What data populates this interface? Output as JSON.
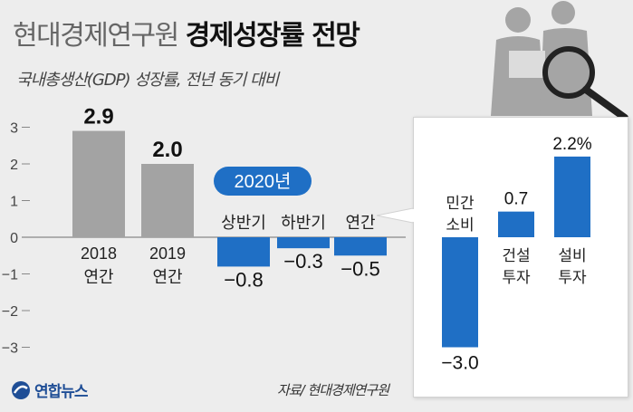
{
  "header": {
    "title_light": "현대경제연구원",
    "title_bold": "경제성장률 전망",
    "subtitle": "국내총생산(GDP) 성장률, 전년 동기 대비"
  },
  "badge": {
    "label": "2020년"
  },
  "source": "자료/ 현대경제연구원",
  "logo": {
    "text": "연합뉴스"
  },
  "colors": {
    "gray_bar": "#a3a3a3",
    "blue_bar": "#1f6fc5",
    "background": "#ededed"
  },
  "chart_data": [
    {
      "type": "bar",
      "title": "",
      "ylim": [
        -3,
        3
      ],
      "y_ticks": [
        "3",
        "2",
        "1",
        "0",
        "−1",
        "−2",
        "−3"
      ],
      "bars": [
        {
          "label_lines": [
            "2018",
            "연간"
          ],
          "value": 2.9,
          "value_label": "2.9"
        },
        {
          "label_lines": [
            "2019",
            "연간"
          ],
          "value": 2.0,
          "value_label": "2.0"
        },
        {
          "label_lines": [
            "상반기"
          ],
          "value": -0.8,
          "value_label": "−0.8"
        },
        {
          "label_lines": [
            "하반기"
          ],
          "value": -0.3,
          "value_label": "−0.3"
        },
        {
          "label_lines": [
            "연간"
          ],
          "value": -0.5,
          "value_label": "−0.5"
        }
      ]
    },
    {
      "type": "bar",
      "title": "",
      "ylim": [
        -3,
        3
      ],
      "bars": [
        {
          "label_lines": [
            "민간",
            "소비"
          ],
          "value": -3.0,
          "value_label": "−3.0"
        },
        {
          "label_lines": [
            "건설",
            "투자"
          ],
          "value": 0.7,
          "value_label": "0.7"
        },
        {
          "label_lines": [
            "설비",
            "투자"
          ],
          "value": 2.2,
          "value_label": "2.2%"
        }
      ]
    }
  ]
}
